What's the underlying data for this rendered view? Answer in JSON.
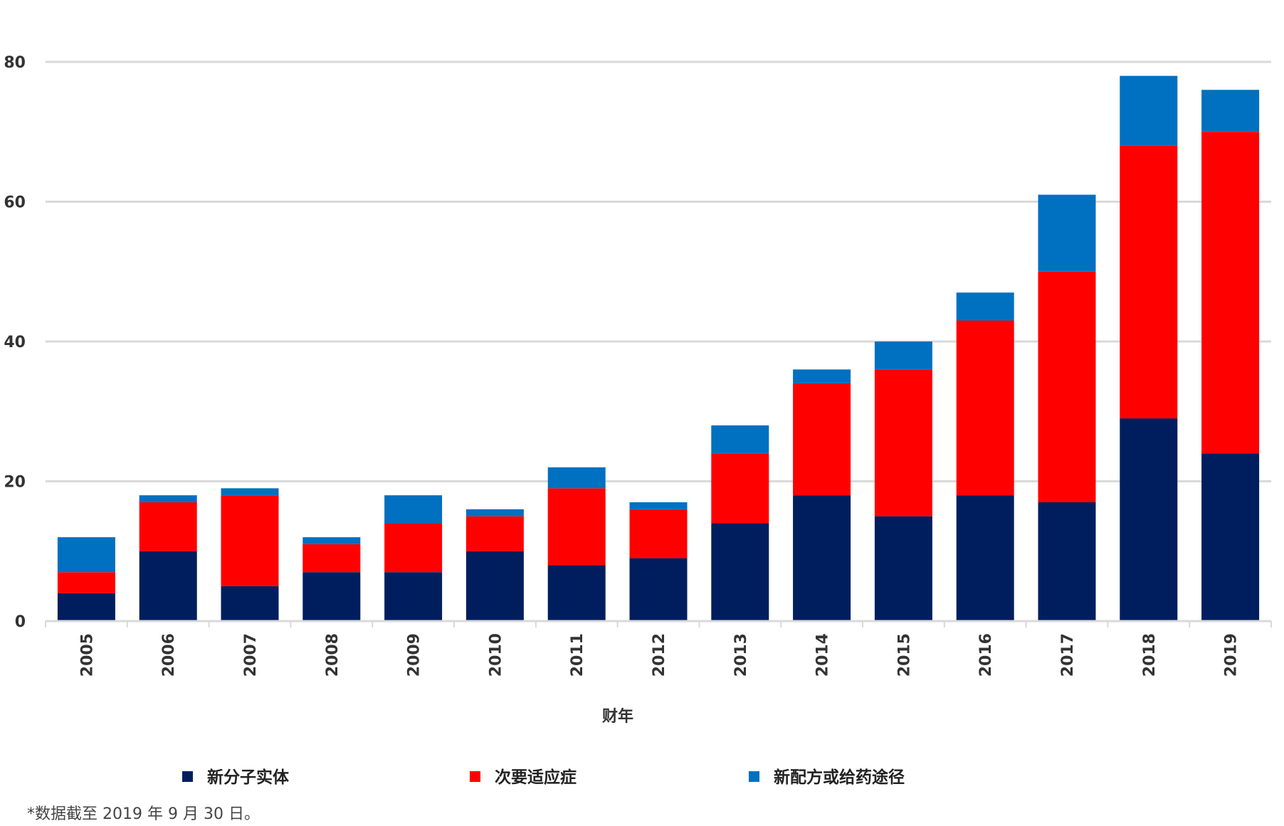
{
  "chart_data": {
    "type": "bar",
    "stacked": true,
    "categories": [
      "2005",
      "2006",
      "2007",
      "2008",
      "2009",
      "2010",
      "2011",
      "2012",
      "2013",
      "2014",
      "2015",
      "2016",
      "2017",
      "2018",
      "2019"
    ],
    "series": [
      {
        "name": "新分子实体",
        "color": "#001e5e",
        "values": [
          4,
          10,
          5,
          7,
          7,
          10,
          8,
          9,
          14,
          18,
          15,
          18,
          17,
          29,
          24
        ]
      },
      {
        "name": "次要适应症",
        "color": "#ff0000",
        "values": [
          3,
          7,
          13,
          4,
          7,
          5,
          11,
          7,
          10,
          16,
          21,
          25,
          33,
          39,
          46
        ]
      },
      {
        "name": "新配方或给药途径",
        "color": "#0070c0",
        "values": [
          5,
          1,
          1,
          1,
          4,
          1,
          3,
          1,
          4,
          2,
          4,
          4,
          11,
          10,
          6
        ]
      }
    ],
    "xlabel": "财年",
    "ylabel": "",
    "ylim": [
      0,
      80
    ],
    "yticks": [
      "0",
      "20",
      "40",
      "60",
      "80"
    ],
    "grid": true,
    "legend_position": "bottom"
  },
  "footnote": "*数据截至 2019 年 9 月 30 日。"
}
